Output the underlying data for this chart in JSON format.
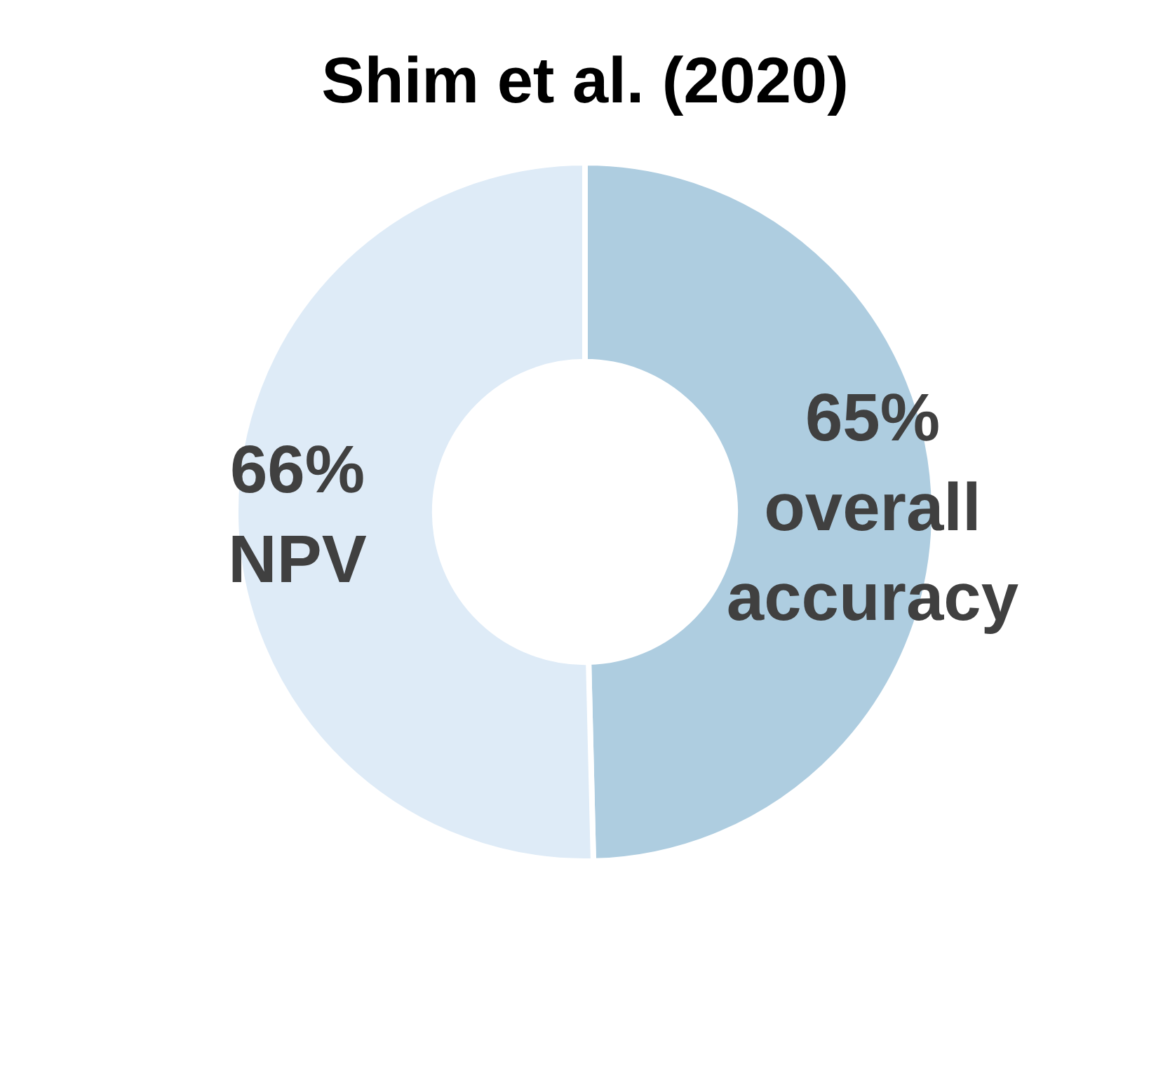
{
  "chart_data": {
    "type": "donut",
    "title": "Shim et al. (2020)",
    "categories": [
      "overall accuracy",
      "NPV"
    ],
    "values": [
      65,
      66
    ],
    "colors": [
      "#aecde0",
      "#deebf7"
    ],
    "value_labels": [
      "65%",
      "66%"
    ]
  }
}
